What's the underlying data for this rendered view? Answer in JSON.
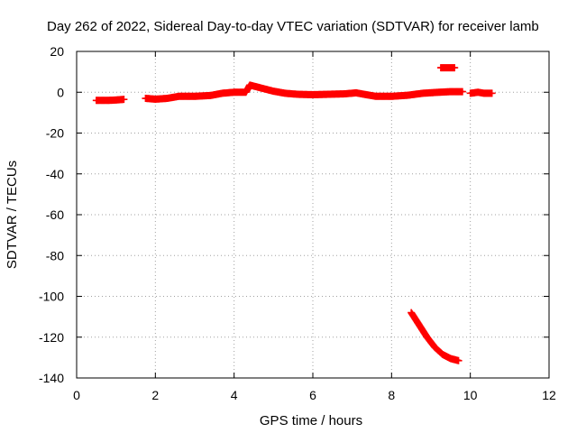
{
  "chart_data": {
    "type": "scatter",
    "title": "Day 262 of 2022, Sidereal Day-to-day VTEC variation (SDTVAR) for receiver lamb",
    "xlabel": "GPS time / hours",
    "ylabel": "SDTVAR / TECUs",
    "xlim": [
      0,
      12
    ],
    "ylim": [
      -140,
      20
    ],
    "x_ticks": [
      0,
      2,
      4,
      6,
      8,
      10,
      12
    ],
    "y_ticks": [
      20,
      0,
      -20,
      -40,
      -60,
      -80,
      -100,
      -120,
      -140
    ],
    "grid": true,
    "marker": "plus",
    "series": [
      {
        "name": "SDTVAR",
        "color": "#ff0000",
        "segments": [
          [
            [
              0.5,
              -4
            ],
            [
              0.8,
              -4
            ],
            [
              1.0,
              -3.8
            ],
            [
              1.2,
              -3.5
            ]
          ],
          [
            [
              1.75,
              -3
            ],
            [
              2.0,
              -3.4
            ],
            [
              2.3,
              -3
            ],
            [
              2.6,
              -2
            ],
            [
              3.0,
              -2
            ],
            [
              3.4,
              -1.6
            ],
            [
              3.7,
              -0.5
            ],
            [
              4.0,
              0
            ],
            [
              4.3,
              0
            ],
            [
              4.4,
              3.5
            ],
            [
              4.6,
              2.5
            ],
            [
              4.8,
              1.5
            ],
            [
              5.0,
              0.5
            ],
            [
              5.3,
              -0.5
            ],
            [
              5.6,
              -1
            ],
            [
              6.0,
              -1.2
            ],
            [
              6.4,
              -1
            ],
            [
              6.8,
              -0.8
            ],
            [
              7.1,
              -0.3
            ],
            [
              7.3,
              -1
            ],
            [
              7.6,
              -2
            ],
            [
              8.0,
              -2
            ],
            [
              8.4,
              -1.5
            ],
            [
              8.8,
              -0.5
            ],
            [
              9.2,
              0
            ],
            [
              9.5,
              0.3
            ],
            [
              9.8,
              0.3
            ]
          ],
          [
            [
              9.25,
              12
            ],
            [
              9.45,
              12
            ],
            [
              9.6,
              12
            ]
          ],
          [
            [
              10.0,
              -0.5
            ],
            [
              10.2,
              0
            ],
            [
              10.35,
              -0.5
            ],
            [
              10.55,
              -0.5
            ]
          ],
          [
            [
              8.5,
              -108
            ],
            [
              8.7,
              -114
            ],
            [
              8.9,
              -120
            ],
            [
              9.1,
              -125
            ],
            [
              9.3,
              -128.5
            ],
            [
              9.5,
              -130.5
            ],
            [
              9.7,
              -131.5
            ]
          ]
        ]
      }
    ]
  }
}
